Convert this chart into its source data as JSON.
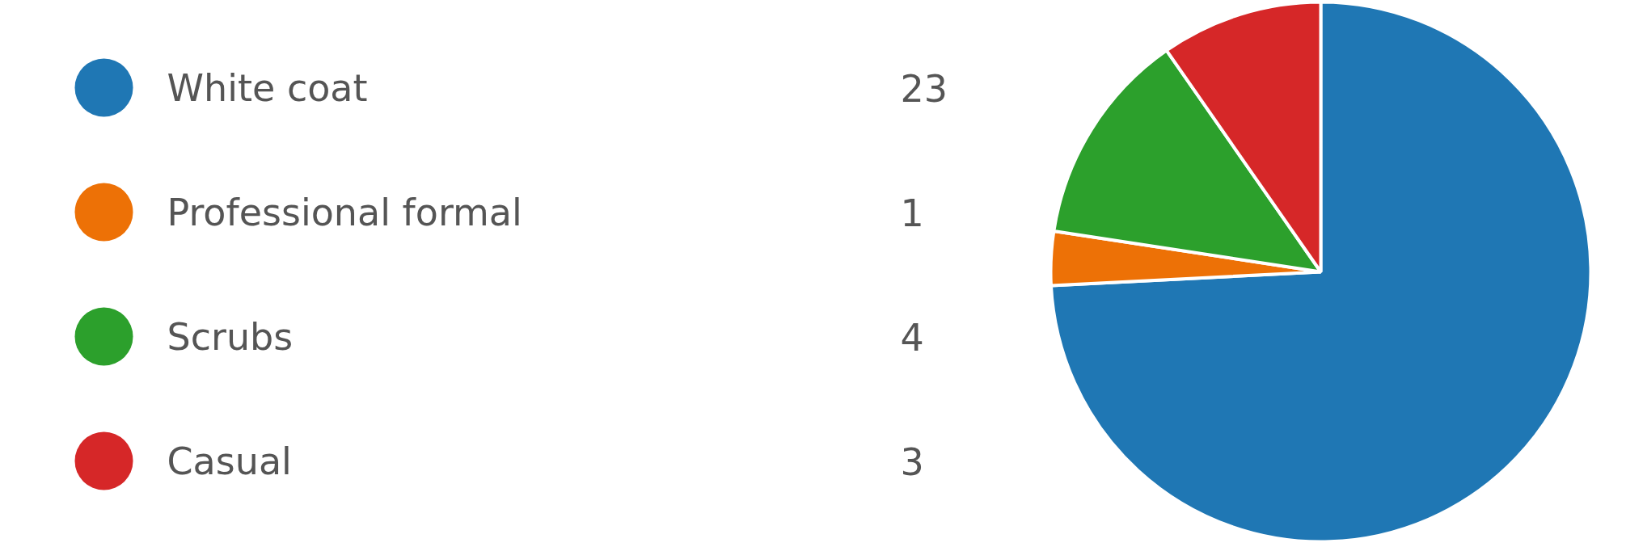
{
  "chart_data": {
    "type": "pie",
    "categories": [
      "White coat",
      "Professional formal",
      "Scrubs",
      "Casual"
    ],
    "values": [
      23,
      1,
      4,
      3
    ],
    "colors": [
      "#1f77b4",
      "#ed7106",
      "#2ca02c",
      "#d62728"
    ],
    "legend": "left",
    "data_labels": true
  }
}
